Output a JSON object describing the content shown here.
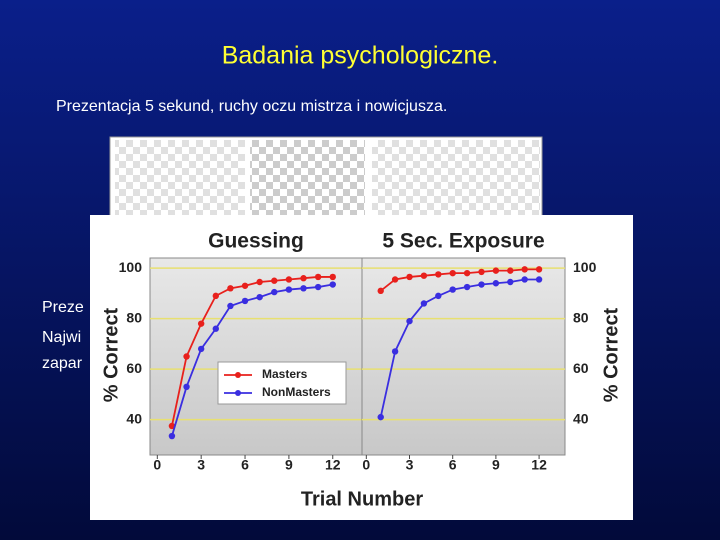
{
  "slide": {
    "title": "Badania psychologiczne.",
    "subtitle": "Prezentacja 5 sekund, ruchy oczu mistrza i nowicjusza.",
    "body_fragments": [
      "Preze",
      "Najwi",
      "zapar"
    ]
  },
  "chart_data": [
    {
      "type": "line",
      "title": "Guessing",
      "ylabel": "% Correct",
      "xlabel": "Trial Number",
      "x": [
        1,
        2,
        3,
        4,
        5,
        6,
        7,
        8,
        9,
        10,
        11,
        12
      ],
      "series": [
        {
          "name": "Masters",
          "color": "#e8201c",
          "values": [
            37.5,
            65,
            78,
            89,
            92,
            93,
            94.5,
            95,
            95.5,
            96,
            96.5,
            96.5
          ]
        },
        {
          "name": "NonMasters",
          "color": "#3a2ee0",
          "values": [
            33.5,
            53,
            68,
            76,
            85,
            87,
            88.5,
            90.5,
            91.5,
            92,
            92.5,
            93.5
          ]
        }
      ],
      "xlim": [
        -0.5,
        14
      ],
      "xticks": [
        0,
        3,
        6,
        9,
        12
      ],
      "ylim": [
        26,
        104
      ],
      "yticks": [
        40,
        60,
        80,
        100
      ],
      "grid": true,
      "legend": "lower-left"
    },
    {
      "type": "line",
      "title": "5 Sec. Exposure",
      "ylabel": "% Correct",
      "x": [
        1,
        2,
        3,
        4,
        5,
        6,
        7,
        8,
        9,
        10,
        11,
        12
      ],
      "series": [
        {
          "name": "Masters",
          "color": "#e8201c",
          "values": [
            91,
            95.5,
            96.5,
            97,
            97.5,
            98,
            98,
            98.5,
            99,
            99,
            99.5,
            99.5
          ]
        },
        {
          "name": "NonMasters",
          "color": "#3a2ee0",
          "values": [
            41,
            67,
            79,
            86,
            89,
            91.5,
            92.5,
            93.5,
            94,
            94.5,
            95.5,
            95.5
          ]
        }
      ],
      "xlim": [
        -0.3,
        13.8
      ],
      "xticks": [
        0,
        3,
        6,
        9,
        12
      ],
      "ylim": [
        26,
        104
      ],
      "yticks": [
        40,
        60,
        80,
        100
      ],
      "grid": true
    }
  ]
}
